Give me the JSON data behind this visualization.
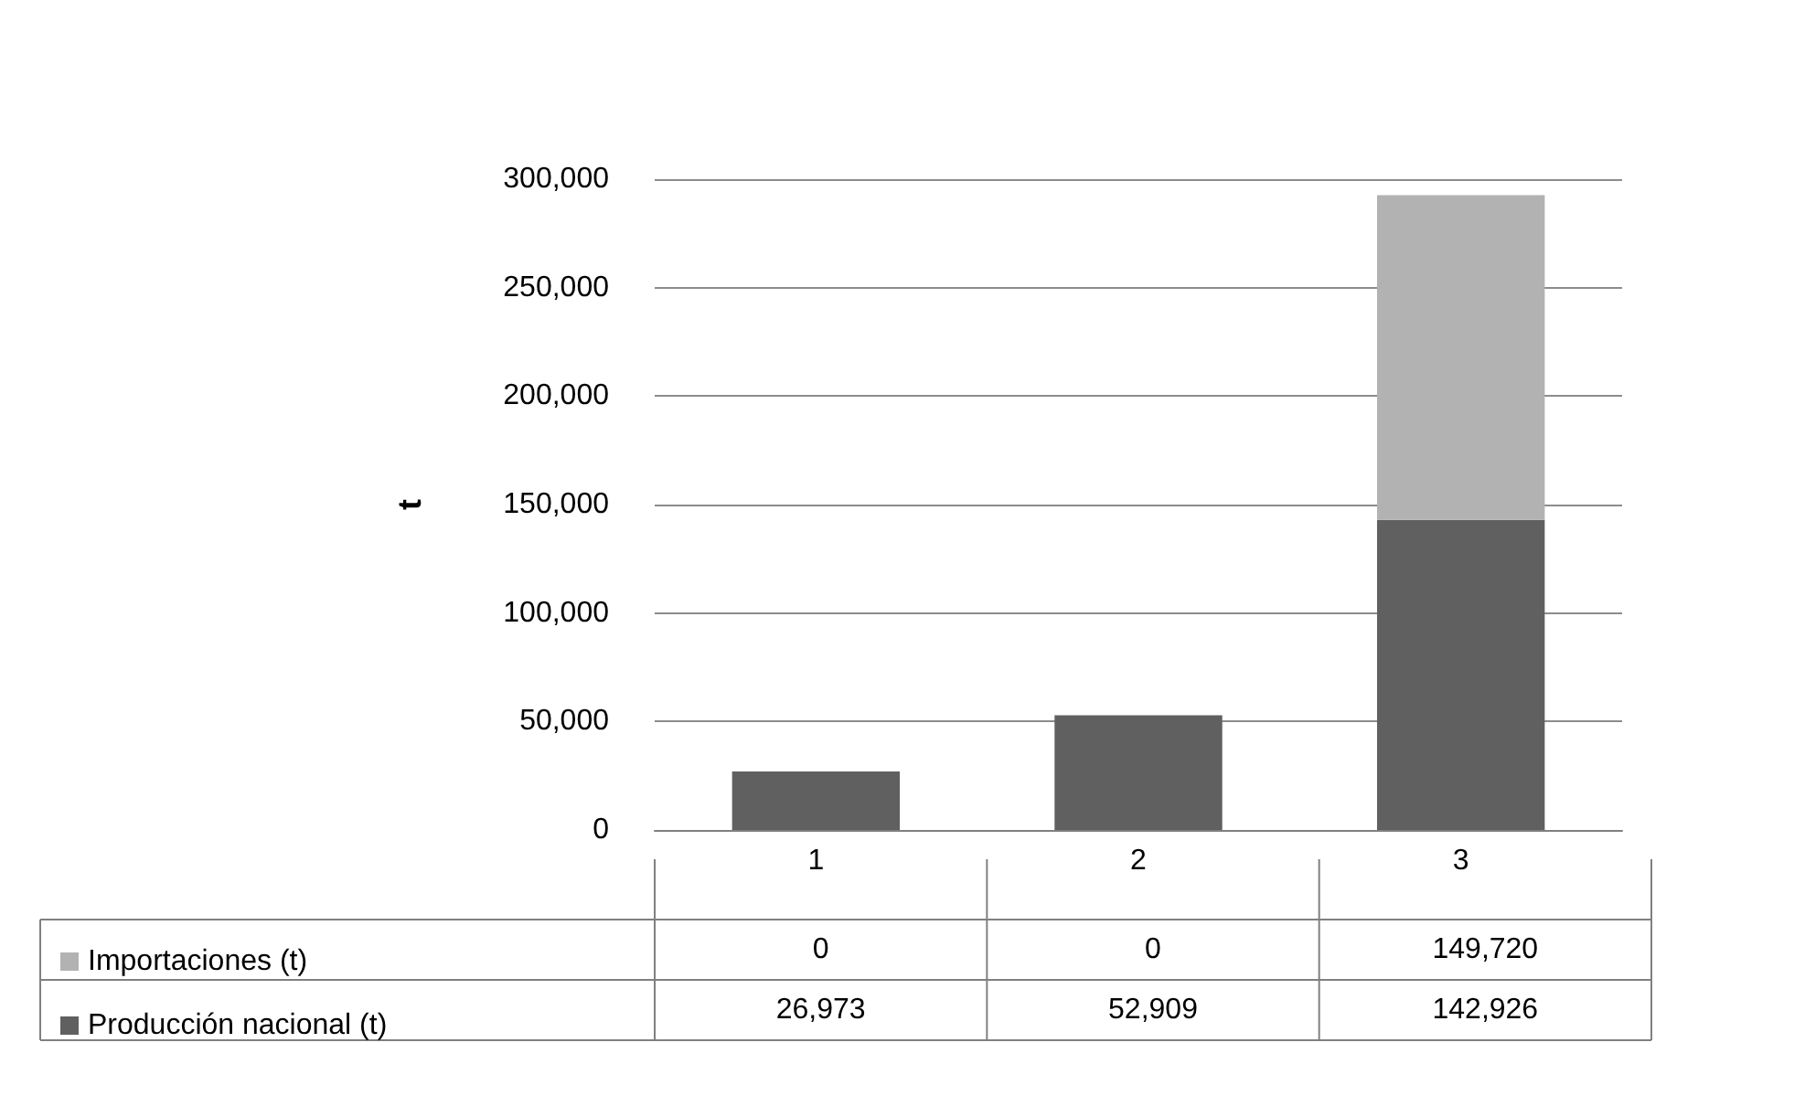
{
  "chart_data": {
    "type": "bar",
    "stacked": true,
    "ylabel": "t",
    "categories": [
      "1",
      "2",
      "3"
    ],
    "series": [
      {
        "name": "Producción nacional (t)",
        "color": "#606060",
        "values": [
          26973,
          52909,
          142926
        ],
        "value_labels": [
          "26,973",
          "52,909",
          "142,926"
        ]
      },
      {
        "name": "Importaciones (t)",
        "color": "#b2b2b2",
        "values": [
          0,
          0,
          149720
        ],
        "value_labels": [
          "0",
          "0",
          "149,720"
        ]
      }
    ],
    "ylim": [
      0,
      300000
    ],
    "yticks": [
      {
        "value": 0,
        "label": "0"
      },
      {
        "value": 50000,
        "label": "50,000"
      },
      {
        "value": 100000,
        "label": "100,000"
      },
      {
        "value": 150000,
        "label": "150,000"
      },
      {
        "value": 200000,
        "label": "200,000"
      },
      {
        "value": 250000,
        "label": "250,000"
      },
      {
        "value": 300000,
        "label": "300,000"
      }
    ],
    "grid": "y",
    "legend": "bottom left"
  }
}
